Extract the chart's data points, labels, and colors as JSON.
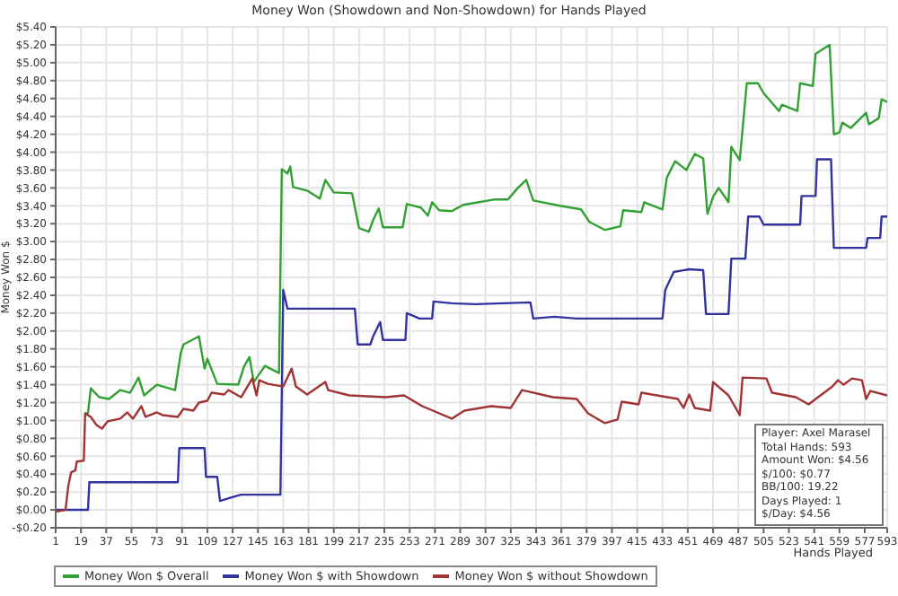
{
  "chart_data": {
    "type": "line",
    "title": "Money Won (Showdown and Non-Showdown) for Hands Played",
    "xlabel": "Hands Played",
    "ylabel": "Money Won $",
    "xlim": [
      1,
      593
    ],
    "xticks": [
      1,
      19,
      37,
      55,
      73,
      91,
      109,
      127,
      145,
      163,
      181,
      199,
      217,
      235,
      253,
      271,
      289,
      307,
      325,
      343,
      361,
      379,
      397,
      415,
      433,
      451,
      469,
      487,
      505,
      523,
      541,
      559,
      577,
      593
    ],
    "ylim": [
      -0.2,
      5.4
    ],
    "yticks": [
      {
        "value": -0.2,
        "label": "-$0.20"
      },
      {
        "value": 0,
        "label": "$0.00"
      },
      {
        "value": 0.2,
        "label": "$0.20"
      },
      {
        "value": 0.4,
        "label": "$0.40"
      },
      {
        "value": 0.6,
        "label": "$0.60"
      },
      {
        "value": 0.8,
        "label": "$0.80"
      },
      {
        "value": 1,
        "label": "$1.00"
      },
      {
        "value": 1.2,
        "label": "$1.20"
      },
      {
        "value": 1.4,
        "label": "$1.40"
      },
      {
        "value": 1.6,
        "label": "$1.60"
      },
      {
        "value": 1.8,
        "label": "$1.80"
      },
      {
        "value": 2,
        "label": "$2.00"
      },
      {
        "value": 2.2,
        "label": "$2.20"
      },
      {
        "value": 2.4,
        "label": "$2.40"
      },
      {
        "value": 2.6,
        "label": "$2.60"
      },
      {
        "value": 2.8,
        "label": "$2.80"
      },
      {
        "value": 3,
        "label": "$3.00"
      },
      {
        "value": 3.2,
        "label": "$3.20"
      },
      {
        "value": 3.4,
        "label": "$3.40"
      },
      {
        "value": 3.6,
        "label": "$3.60"
      },
      {
        "value": 3.8,
        "label": "$3.80"
      },
      {
        "value": 4,
        "label": "$4.00"
      },
      {
        "value": 4.2,
        "label": "$4.20"
      },
      {
        "value": 4.4,
        "label": "$4.40"
      },
      {
        "value": 4.6,
        "label": "$4.60"
      },
      {
        "value": 4.8,
        "label": "$4.80"
      },
      {
        "value": 5,
        "label": "$5.00"
      },
      {
        "value": 5.2,
        "label": "$5.20"
      },
      {
        "value": 5.4,
        "label": "$5.40"
      }
    ],
    "grid": true,
    "legend": "bottom",
    "marker": "none",
    "series": [
      {
        "name": "Money Won $ Overall",
        "color": "#33a033",
        "x": [
          22,
          24,
          26,
          32,
          39,
          47,
          54,
          60,
          64,
          73,
          86,
          90,
          92,
          103,
          107,
          109,
          116,
          131,
          135,
          139,
          142,
          150,
          160,
          162,
          166,
          168,
          170,
          180,
          189,
          193,
          199,
          212,
          217,
          224,
          227,
          231,
          234,
          248,
          251,
          261,
          266,
          269,
          274,
          283,
          291,
          313,
          323,
          330,
          336,
          341,
          360,
          375,
          381,
          392,
          403,
          405,
          418,
          420,
          433,
          436,
          442,
          450,
          456,
          462,
          465,
          469,
          473,
          480,
          482,
          488,
          493,
          501,
          505,
          516,
          518,
          529,
          531,
          540,
          542,
          552,
          555,
          559,
          561,
          567,
          578,
          580,
          587,
          589,
          593
        ],
        "values": [
          1.08,
          1.08,
          1.36,
          1.26,
          1.24,
          1.34,
          1.31,
          1.48,
          1.28,
          1.4,
          1.34,
          1.75,
          1.85,
          1.94,
          1.58,
          1.69,
          1.41,
          1.4,
          1.6,
          1.71,
          1.43,
          1.61,
          1.53,
          3.81,
          3.76,
          3.84,
          3.61,
          3.57,
          3.48,
          3.69,
          3.55,
          3.54,
          3.15,
          3.11,
          3.24,
          3.37,
          3.16,
          3.16,
          3.42,
          3.38,
          3.29,
          3.44,
          3.35,
          3.34,
          3.41,
          3.47,
          3.47,
          3.6,
          3.69,
          3.46,
          3.4,
          3.36,
          3.22,
          3.13,
          3.17,
          3.35,
          3.33,
          3.44,
          3.36,
          3.71,
          3.9,
          3.8,
          3.98,
          3.93,
          3.31,
          3.5,
          3.6,
          3.44,
          4.06,
          3.91,
          4.77,
          4.77,
          4.66,
          4.46,
          4.53,
          4.46,
          4.77,
          4.74,
          5.1,
          5.2,
          4.2,
          4.22,
          4.33,
          4.27,
          4.44,
          4.31,
          4.38,
          4.59,
          4.56
        ]
      },
      {
        "name": "Money Won $ with Showdown",
        "color": "#3333a0",
        "x": [
          1,
          24,
          25,
          88,
          89,
          107,
          108,
          116,
          118,
          122,
          133,
          161,
          163,
          166,
          214,
          216,
          225,
          227,
          232,
          234,
          250,
          251,
          260,
          269,
          270,
          283,
          300,
          339,
          341,
          356,
          372,
          433,
          435,
          441,
          452,
          462,
          464,
          480,
          482,
          492,
          494,
          502,
          505,
          531,
          532,
          542,
          543,
          553,
          555,
          578,
          579,
          588,
          589,
          593
        ],
        "values": [
          0,
          0,
          0.31,
          0.31,
          0.69,
          0.69,
          0.37,
          0.37,
          0.1,
          0.12,
          0.17,
          0.17,
          2.46,
          2.25,
          2.25,
          1.85,
          1.85,
          1.94,
          2.1,
          1.9,
          1.9,
          2.2,
          2.14,
          2.14,
          2.33,
          2.31,
          2.3,
          2.32,
          2.14,
          2.16,
          2.14,
          2.14,
          2.46,
          2.66,
          2.69,
          2.68,
          2.19,
          2.19,
          2.81,
          2.81,
          3.28,
          3.28,
          3.19,
          3.19,
          3.51,
          3.51,
          3.92,
          3.92,
          2.93,
          2.93,
          3.04,
          3.04,
          3.28,
          3.28
        ]
      },
      {
        "name": "Money Won $ without Showdown",
        "color": "#a03333",
        "x": [
          1,
          8,
          10,
          12,
          15,
          16,
          21,
          22,
          26,
          30,
          34,
          38,
          47,
          52,
          56,
          62,
          65,
          73,
          77,
          88,
          92,
          99,
          103,
          109,
          112,
          121,
          124,
          133,
          141,
          144,
          146,
          152,
          163,
          169,
          172,
          180,
          193,
          195,
          210,
          236,
          249,
          262,
          283,
          292,
          311,
          325,
          333,
          355,
          372,
          380,
          392,
          401,
          404,
          416,
          418,
          444,
          448,
          452,
          456,
          467,
          469,
          480,
          488,
          490,
          507,
          511,
          528,
          537,
          554,
          558,
          562,
          568,
          575,
          578,
          581,
          593
        ],
        "values": [
          -0.02,
          0,
          0.27,
          0.42,
          0.44,
          0.54,
          0.55,
          1.08,
          1.04,
          0.95,
          0.91,
          0.99,
          1.02,
          1.09,
          1.02,
          1.16,
          1.04,
          1.09,
          1.06,
          1.04,
          1.13,
          1.11,
          1.2,
          1.22,
          1.31,
          1.29,
          1.34,
          1.26,
          1.47,
          1.28,
          1.45,
          1.41,
          1.38,
          1.58,
          1.38,
          1.29,
          1.43,
          1.34,
          1.28,
          1.26,
          1.28,
          1.16,
          1.02,
          1.11,
          1.16,
          1.14,
          1.34,
          1.26,
          1.24,
          1.08,
          0.97,
          1.01,
          1.21,
          1.18,
          1.31,
          1.24,
          1.14,
          1.29,
          1.14,
          1.11,
          1.43,
          1.28,
          1.06,
          1.48,
          1.47,
          1.31,
          1.26,
          1.18,
          1.38,
          1.45,
          1.4,
          1.47,
          1.45,
          1.24,
          1.33,
          1.28
        ]
      }
    ],
    "annotations": [
      "Player: Axel Marasel",
      "Total Hands: 593",
      "Amount Won: $4.56",
      "$/100: $0.77",
      "BB/100: 19.22",
      "Days Played: 1",
      "$/Day: $4.56"
    ]
  }
}
